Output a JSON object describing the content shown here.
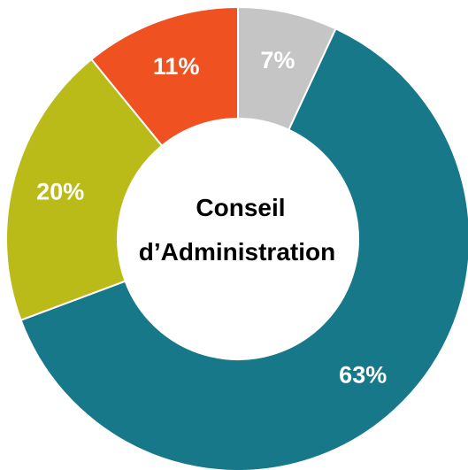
{
  "chart_data": {
    "type": "pie",
    "variant": "donut",
    "title": "",
    "center_text": [
      "Conseil",
      "d’Administration"
    ],
    "slices": [
      {
        "label": "63%",
        "value": 63,
        "color": "#167888"
      },
      {
        "label": "20%",
        "value": 20,
        "color": "#BABB19"
      },
      {
        "label": "11%",
        "value": 11,
        "color": "#F05121"
      },
      {
        "label": "7%",
        "value": 7,
        "color": "#C5C5C5"
      }
    ],
    "legend": "none",
    "start_angle": "12 o'clock",
    "direction": "clockwise starting with the 7% slice"
  }
}
